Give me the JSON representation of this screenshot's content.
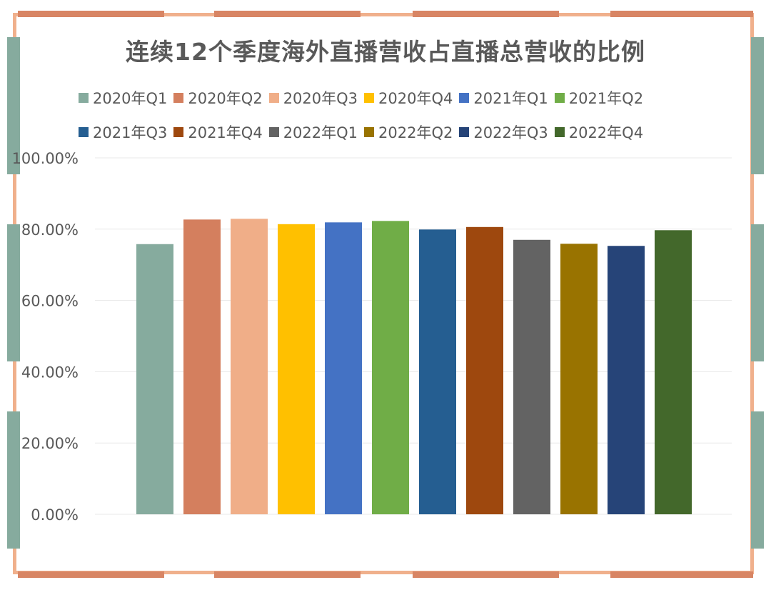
{
  "chart_data": {
    "type": "bar",
    "title": "连续12个季度海外直播营收占直播总营收的比例",
    "categories": [
      "2020年Q1",
      "2020年Q2",
      "2020年Q3",
      "2020年Q4",
      "2021年Q1",
      "2021年Q2",
      "2021年Q3",
      "2021年Q4",
      "2022年Q1",
      "2022年Q2",
      "2022年Q3",
      "2022年Q4"
    ],
    "values": [
      75.8,
      82.7,
      82.9,
      81.4,
      81.9,
      82.3,
      79.9,
      80.6,
      77.0,
      75.9,
      75.3,
      79.7
    ],
    "value_unit": "%",
    "colors": [
      "#86ab9e",
      "#d47f5e",
      "#f0ae88",
      "#ffc000",
      "#4472c4",
      "#70ad47",
      "#255e91",
      "#9e480e",
      "#636363",
      "#997300",
      "#264478",
      "#43682b"
    ],
    "ylim": [
      0,
      100
    ],
    "yticks": [
      "0.00%",
      "20.00%",
      "40.00%",
      "60.00%",
      "80.00%",
      "100.00%"
    ],
    "ytick_values": [
      0,
      20,
      40,
      60,
      80,
      100
    ],
    "grid": true,
    "legend_position": "top"
  }
}
